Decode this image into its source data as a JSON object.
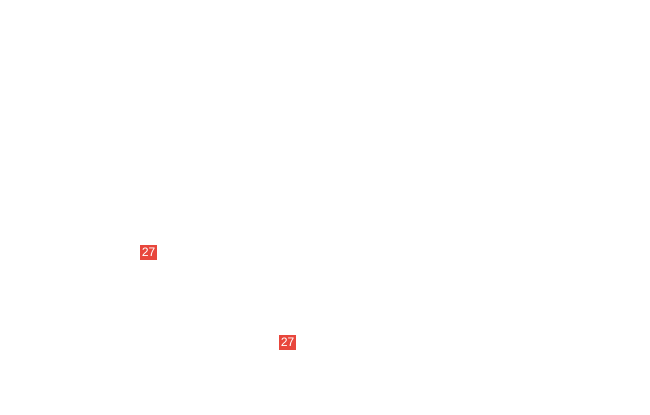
{
  "badges": [
    {
      "label": "27",
      "color": "#e8463c"
    },
    {
      "label": "27",
      "color": "#e8463c"
    }
  ]
}
